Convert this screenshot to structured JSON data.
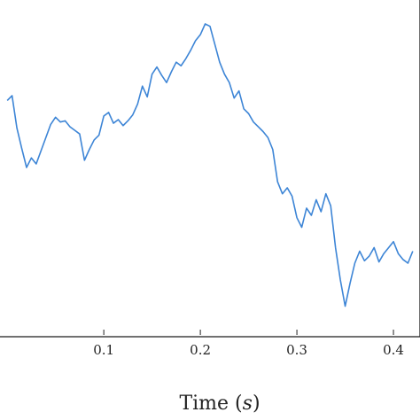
{
  "chart_data": {
    "type": "line",
    "title": "",
    "xlabel": "Time (s)",
    "xlabel_main": "Time (",
    "xlabel_unit": "s",
    "xlabel_close": ")",
    "ylabel": "",
    "xlim": [
      -0.0075,
      0.4275
    ],
    "x_ticks": [
      0.1,
      0.2,
      0.3,
      0.4
    ],
    "x_tick_labels": [
      "0.1",
      "0.2",
      "0.3",
      "0.4"
    ],
    "grid": false,
    "legend": "none",
    "line_color": "#3d85d6",
    "series": [
      {
        "x": [
          0.0,
          0.005,
          0.01,
          0.015,
          0.02,
          0.025,
          0.03,
          0.035,
          0.04,
          0.045,
          0.05,
          0.055,
          0.06,
          0.065,
          0.07,
          0.075,
          0.08,
          0.085,
          0.09,
          0.095,
          0.1,
          0.105,
          0.11,
          0.115,
          0.12,
          0.125,
          0.13,
          0.135,
          0.14,
          0.145,
          0.15,
          0.155,
          0.16,
          0.165,
          0.17,
          0.175,
          0.18,
          0.185,
          0.19,
          0.195,
          0.2,
          0.205,
          0.21,
          0.215,
          0.22,
          0.225,
          0.23,
          0.235,
          0.24,
          0.245,
          0.25,
          0.255,
          0.26,
          0.265,
          0.27,
          0.275,
          0.28,
          0.285,
          0.29,
          0.295,
          0.3,
          0.305,
          0.31,
          0.315,
          0.32,
          0.325,
          0.33,
          0.335,
          0.34,
          0.345,
          0.35,
          0.355,
          0.36,
          0.365,
          0.37,
          0.375,
          0.38,
          0.385,
          0.39,
          0.395,
          0.4,
          0.405,
          0.41,
          0.415,
          0.42
        ],
        "y": [
          0.78,
          0.82,
          0.55,
          0.38,
          0.22,
          0.3,
          0.25,
          0.36,
          0.47,
          0.58,
          0.64,
          0.6,
          0.61,
          0.56,
          0.53,
          0.5,
          0.28,
          0.37,
          0.45,
          0.49,
          0.65,
          0.68,
          0.59,
          0.62,
          0.57,
          0.61,
          0.66,
          0.75,
          0.9,
          0.81,
          1.0,
          1.06,
          0.99,
          0.93,
          1.02,
          1.1,
          1.07,
          1.13,
          1.2,
          1.28,
          1.33,
          1.42,
          1.4,
          1.25,
          1.1,
          1.0,
          0.93,
          0.8,
          0.86,
          0.71,
          0.67,
          0.6,
          0.56,
          0.52,
          0.47,
          0.37,
          0.1,
          0.0,
          0.05,
          -0.02,
          -0.2,
          -0.28,
          -0.12,
          -0.18,
          -0.05,
          -0.15,
          0.0,
          -0.1,
          -0.45,
          -0.72,
          -0.94,
          -0.75,
          -0.58,
          -0.48,
          -0.56,
          -0.52,
          -0.45,
          -0.57,
          -0.5,
          -0.45,
          -0.4,
          -0.5,
          -0.55,
          -0.58,
          -0.48
        ]
      }
    ]
  }
}
